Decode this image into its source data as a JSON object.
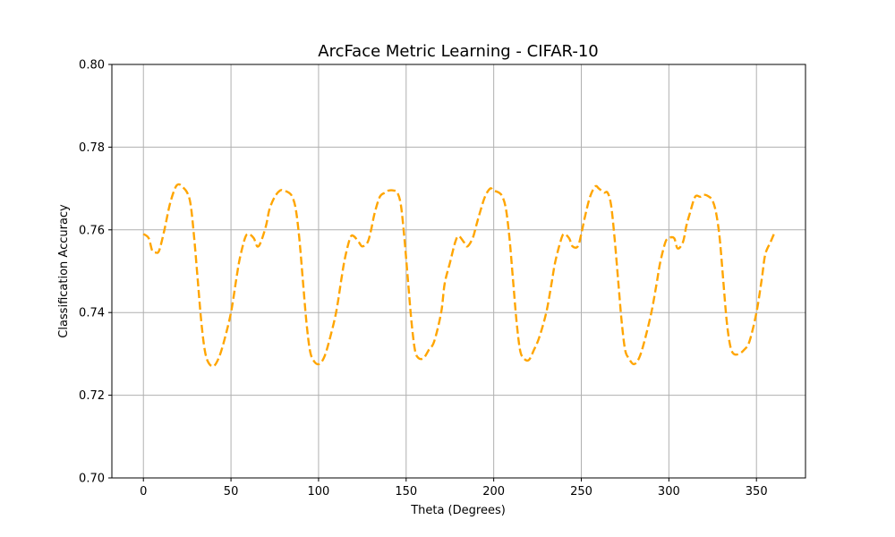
{
  "chart_data": {
    "type": "line",
    "title": "ArcFace Metric Learning - CIFAR-10",
    "xlabel": "Theta (Degrees)",
    "ylabel": "Classification Accuracy",
    "xlim": [
      -18,
      378
    ],
    "ylim": [
      0.7,
      0.8
    ],
    "xticks": [
      0,
      50,
      100,
      150,
      200,
      250,
      300,
      350
    ],
    "yticks": [
      0.7,
      0.72,
      0.74,
      0.76,
      0.78,
      0.8
    ],
    "ytick_labels": [
      "0.70",
      "0.72",
      "0.74",
      "0.76",
      "0.78",
      "0.80"
    ],
    "grid": true,
    "legend": "none",
    "series": [
      {
        "color": "#ffa500",
        "linestyle": "dashed",
        "x": [
          0,
          3,
          5,
          7,
          9,
          12,
          15,
          18,
          20,
          22,
          25,
          27,
          29,
          31,
          33,
          35,
          37,
          40,
          43,
          46,
          50,
          53,
          55,
          58,
          60,
          63,
          65,
          67,
          70,
          72,
          75,
          78,
          80,
          83,
          85,
          87,
          89,
          91,
          93,
          95,
          97,
          100,
          103,
          106,
          110,
          113,
          115,
          118,
          120,
          123,
          125,
          128,
          130,
          132,
          135,
          138,
          140,
          143,
          145,
          147,
          149,
          151,
          153,
          155,
          157,
          160,
          163,
          166,
          170,
          172,
          175,
          178,
          180,
          183,
          185,
          188,
          190,
          192,
          195,
          198,
          200,
          203,
          205,
          207,
          209,
          211,
          213,
          215,
          217,
          220,
          223,
          226,
          230,
          233,
          235,
          238,
          240,
          243,
          245,
          248,
          250,
          252,
          255,
          258,
          260,
          263,
          265,
          267,
          269,
          271,
          273,
          275,
          277,
          280,
          283,
          286,
          290,
          293,
          295,
          298,
          300,
          303,
          305,
          308,
          310,
          312,
          315,
          318,
          320,
          323,
          325,
          327,
          329,
          331,
          333,
          335,
          337,
          340,
          343,
          346,
          350,
          353,
          355,
          358,
          360
        ],
        "y": [
          0.759,
          0.758,
          0.755,
          0.7545,
          0.755,
          0.76,
          0.766,
          0.77,
          0.771,
          0.7705,
          0.769,
          0.766,
          0.758,
          0.748,
          0.738,
          0.731,
          0.728,
          0.727,
          0.729,
          0.733,
          0.74,
          0.748,
          0.753,
          0.758,
          0.759,
          0.758,
          0.756,
          0.757,
          0.761,
          0.765,
          0.768,
          0.7695,
          0.7695,
          0.769,
          0.768,
          0.765,
          0.758,
          0.748,
          0.738,
          0.731,
          0.7285,
          0.7275,
          0.729,
          0.733,
          0.74,
          0.748,
          0.753,
          0.758,
          0.7585,
          0.757,
          0.756,
          0.757,
          0.76,
          0.764,
          0.768,
          0.769,
          0.7695,
          0.7695,
          0.769,
          0.766,
          0.758,
          0.748,
          0.738,
          0.731,
          0.729,
          0.729,
          0.731,
          0.733,
          0.74,
          0.747,
          0.752,
          0.757,
          0.7585,
          0.757,
          0.756,
          0.758,
          0.761,
          0.764,
          0.768,
          0.77,
          0.7695,
          0.769,
          0.768,
          0.765,
          0.758,
          0.748,
          0.738,
          0.731,
          0.729,
          0.7285,
          0.731,
          0.734,
          0.74,
          0.747,
          0.752,
          0.757,
          0.759,
          0.758,
          0.756,
          0.756,
          0.759,
          0.763,
          0.768,
          0.7705,
          0.77,
          0.769,
          0.769,
          0.766,
          0.758,
          0.748,
          0.738,
          0.731,
          0.729,
          0.7275,
          0.729,
          0.733,
          0.74,
          0.747,
          0.752,
          0.757,
          0.758,
          0.758,
          0.7555,
          0.757,
          0.761,
          0.764,
          0.768,
          0.768,
          0.7685,
          0.768,
          0.767,
          0.764,
          0.758,
          0.748,
          0.738,
          0.732,
          0.73,
          0.73,
          0.731,
          0.733,
          0.74,
          0.748,
          0.754,
          0.757,
          0.759
        ]
      }
    ]
  }
}
